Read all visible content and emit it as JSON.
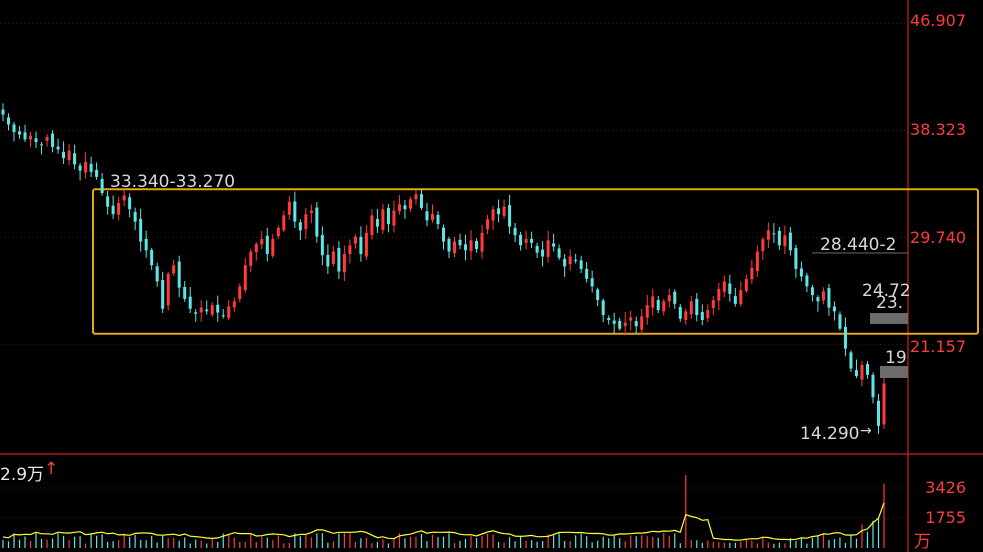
{
  "chart_data": {
    "type": "candlestick",
    "price_axis": {
      "ticks": [
        "46.907",
        "38.323",
        "29.740",
        "21.157"
      ],
      "tick_values": [
        46.907,
        38.323,
        29.74,
        21.157
      ],
      "ylim": [
        12.5,
        48.8
      ]
    },
    "volume_axis": {
      "ticks": [
        "3426",
        "1755"
      ],
      "tick_values": [
        3426,
        1755
      ],
      "unit": "万"
    },
    "volume_header": "2.9万",
    "volume_header_arrow": "↑",
    "annotations": {
      "range_high": "33.340-33.270",
      "right_level_1": "28.440-2",
      "right_level_2": "24.72",
      "right_level_3": "23.",
      "right_level_4": "19",
      "low_label": "14.290",
      "low_arrow": "→"
    },
    "highlight_box": {
      "from": 22.0,
      "to": 33.6,
      "color": "#e6a817"
    },
    "colors": {
      "up": "#ff3b3b",
      "down": "#5ce6e6",
      "ma": "#ffff33",
      "axis": "#cc2222"
    },
    "closes": [
      39.6,
      38.8,
      38.2,
      38.0,
      37.6,
      37.9,
      37.4,
      37.2,
      37.8,
      37.0,
      36.8,
      36.1,
      36.7,
      35.6,
      35.1,
      35.8,
      35.0,
      34.6,
      33.3,
      32.2,
      31.6,
      32.5,
      33.1,
      32.0,
      31.0,
      29.4,
      28.7,
      27.5,
      26.2,
      24.0,
      26.8,
      27.5,
      25.7,
      24.8,
      24.0,
      23.6,
      24.1,
      23.8,
      24.3,
      23.7,
      23.4,
      24.2,
      24.6,
      25.8,
      27.5,
      28.6,
      29.2,
      29.6,
      28.4,
      29.6,
      30.5,
      31.5,
      32.6,
      31.0,
      30.3,
      31.6,
      31.9,
      29.8,
      28.3,
      27.4,
      28.6,
      27.0,
      28.4,
      29.1,
      29.8,
      28.4,
      30.1,
      31.5,
      30.6,
      32.0,
      30.8,
      31.9,
      32.4,
      32.0,
      32.8,
      33.2,
      32.1,
      31.1,
      31.6,
      30.8,
      29.4,
      28.6,
      29.4,
      29.1,
      28.7,
      29.5,
      28.8,
      30.1,
      31.2,
      32.0,
      31.6,
      32.2,
      30.6,
      29.9,
      29.1,
      29.6,
      29.3,
      28.5,
      28.2,
      29.5,
      29.0,
      28.1,
      27.4,
      28.2,
      27.9,
      27.2,
      26.4,
      25.8,
      24.7,
      23.5,
      23.1,
      22.8,
      22.4,
      22.9,
      23.3,
      22.6,
      23.4,
      24.3,
      25.0,
      23.9,
      24.6,
      25.1,
      24.4,
      23.2,
      23.8,
      24.6,
      23.5,
      23.1,
      23.9,
      24.7,
      25.6,
      26.2,
      25.2,
      24.4,
      25.5,
      26.4,
      27.3,
      28.6,
      29.6,
      30.3,
      30.0,
      29.1,
      29.9,
      28.7,
      27.2,
      26.6,
      25.8,
      25.1,
      24.6,
      25.4,
      24.1,
      23.8,
      22.4,
      20.8,
      19.2,
      18.6,
      19.5,
      18.7,
      16.9,
      14.6,
      18.0
    ],
    "volume_scale_max": 4600,
    "volume_peaks": {
      "spike_index": 124,
      "spike_value": 4300,
      "last_value": 3800
    }
  }
}
